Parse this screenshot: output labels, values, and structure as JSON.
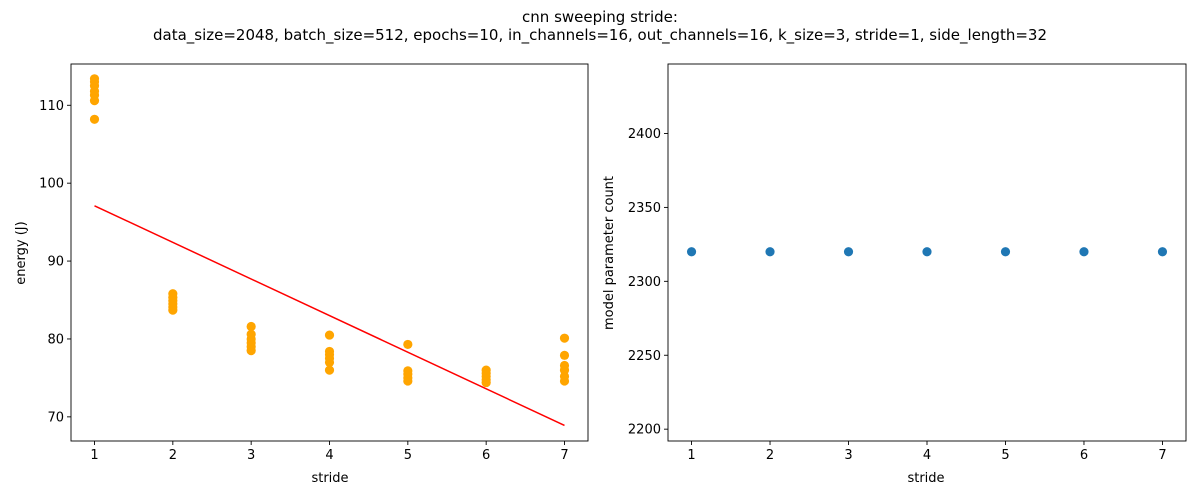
{
  "figure": {
    "title_line1": "cnn sweeping stride:",
    "title_line2": "data_size=2048, batch_size=512, epochs=10, in_channels=16, out_channels=16, k_size=3, stride=1, side_length=32"
  },
  "chart_data": [
    {
      "type": "scatter",
      "xlabel": "stride",
      "ylabel": "energy (J)",
      "xlim": [
        0.7,
        7.3
      ],
      "ylim": [
        66.9,
        115.3
      ],
      "xticks": [
        1,
        2,
        3,
        4,
        5,
        6,
        7
      ],
      "yticks": [
        70,
        80,
        90,
        100,
        110
      ],
      "grid": false,
      "point_color": "#ffa500",
      "line_color": "#ff0000",
      "series": [
        {
          "kind": "points",
          "points": [
            [
              1,
              108.2
            ],
            [
              1,
              110.6
            ],
            [
              1,
              111.3
            ],
            [
              1,
              111.8
            ],
            [
              1,
              112.5
            ],
            [
              1,
              113.0
            ],
            [
              1,
              113.4
            ],
            [
              2,
              83.7
            ],
            [
              2,
              84.1
            ],
            [
              2,
              84.5
            ],
            [
              2,
              84.9
            ],
            [
              2,
              85.3
            ],
            [
              2,
              85.8
            ],
            [
              3,
              78.5
            ],
            [
              3,
              79.0
            ],
            [
              3,
              79.5
            ],
            [
              3,
              80.0
            ],
            [
              3,
              80.6
            ],
            [
              3,
              81.6
            ],
            [
              4,
              76.0
            ],
            [
              4,
              77.0
            ],
            [
              4,
              77.5
            ],
            [
              4,
              78.0
            ],
            [
              4,
              78.4
            ],
            [
              4,
              80.5
            ],
            [
              5,
              74.6
            ],
            [
              5,
              75.0
            ],
            [
              5,
              75.5
            ],
            [
              5,
              75.9
            ],
            [
              5,
              79.3
            ],
            [
              6,
              74.4
            ],
            [
              6,
              74.8
            ],
            [
              6,
              75.2
            ],
            [
              6,
              75.6
            ],
            [
              6,
              76.0
            ],
            [
              7,
              74.6
            ],
            [
              7,
              75.2
            ],
            [
              7,
              76.0
            ],
            [
              7,
              76.6
            ],
            [
              7,
              77.9
            ],
            [
              7,
              80.1
            ]
          ]
        },
        {
          "kind": "fit-line",
          "points": [
            [
              1,
              97.1
            ],
            [
              7,
              68.9
            ]
          ]
        }
      ]
    },
    {
      "type": "scatter",
      "xlabel": "stride",
      "ylabel": "model parameter count",
      "xlim": [
        0.7,
        7.3
      ],
      "ylim": [
        2192,
        2447
      ],
      "xticks": [
        1,
        2,
        3,
        4,
        5,
        6,
        7
      ],
      "yticks": [
        2200,
        2250,
        2300,
        2350,
        2400
      ],
      "grid": false,
      "point_color": "#1f77b4",
      "series": [
        {
          "kind": "points",
          "points": [
            [
              1,
              2320
            ],
            [
              2,
              2320
            ],
            [
              3,
              2320
            ],
            [
              4,
              2320
            ],
            [
              5,
              2320
            ],
            [
              6,
              2320
            ],
            [
              7,
              2320
            ]
          ]
        }
      ]
    }
  ]
}
